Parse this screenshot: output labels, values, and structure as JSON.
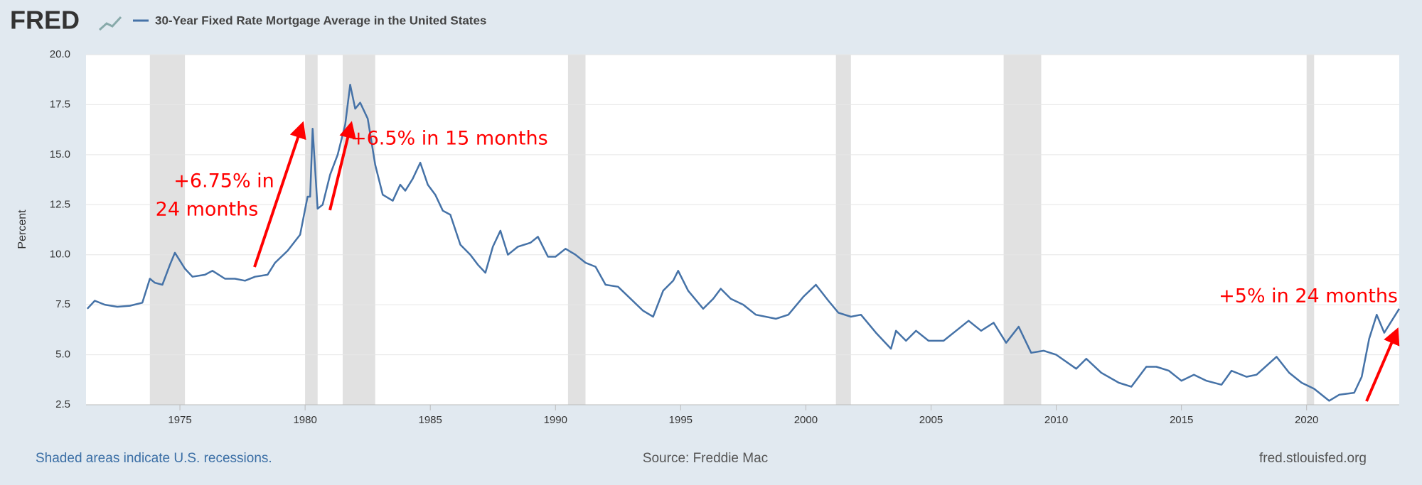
{
  "chart_data": {
    "type": "line",
    "logo": "FRED",
    "title": "30-Year Fixed Rate Mortgage Average in the United States",
    "y_label": "Percent",
    "footer_left": "Shaded areas indicate U.S. recessions.",
    "footer_center": "Source: Freddie Mac",
    "footer_right": "fred.stlouisfed.org",
    "annotations": [
      [
        "+6.75% in",
        "24 months"
      ],
      [
        "+6.5% in 15 months"
      ],
      [
        "+5% in 24 months"
      ]
    ],
    "xlim": [
      1971.25,
      2023.7
    ],
    "xticks": [
      1975,
      1980,
      1985,
      1990,
      1995,
      2000,
      2005,
      2010,
      2015,
      2020
    ],
    "ylim": [
      2.5,
      20
    ],
    "yticks": [
      {
        "value": 2.5,
        "label": "2.5"
      },
      {
        "value": 5,
        "label": "5.0"
      },
      {
        "value": 7.5,
        "label": "7.5"
      },
      {
        "value": 10,
        "label": "10.0"
      },
      {
        "value": 12.5,
        "label": "12.5"
      },
      {
        "value": 15,
        "label": "15.0"
      },
      {
        "value": 17.5,
        "label": "17.5"
      },
      {
        "value": 20,
        "label": "20.0"
      }
    ],
    "grid": true,
    "recessions": [
      [
        1973.8,
        1975.2
      ],
      [
        1980.0,
        1980.5
      ],
      [
        1981.5,
        1982.8
      ],
      [
        1990.5,
        1991.2
      ],
      [
        2001.2,
        2001.8
      ],
      [
        2007.9,
        2009.4
      ],
      [
        2020.0,
        2020.3
      ]
    ],
    "x": [
      1971.3,
      1971.6,
      1972.0,
      1972.5,
      1973.0,
      1973.5,
      1973.8,
      1974.0,
      1974.3,
      1974.6,
      1974.8,
      1975.2,
      1975.5,
      1976.0,
      1976.3,
      1976.8,
      1977.2,
      1977.6,
      1978.0,
      1978.5,
      1978.8,
      1979.3,
      1979.8,
      1980.1,
      1980.2,
      1980.3,
      1980.5,
      1980.7,
      1981.0,
      1981.3,
      1981.6,
      1981.8,
      1982.0,
      1982.2,
      1982.5,
      1982.8,
      1983.1,
      1983.5,
      1983.8,
      1984.0,
      1984.3,
      1984.6,
      1984.9,
      1985.2,
      1985.5,
      1985.8,
      1986.2,
      1986.6,
      1986.9,
      1987.2,
      1987.5,
      1987.8,
      1988.1,
      1988.5,
      1989.0,
      1989.3,
      1989.7,
      1990.0,
      1990.4,
      1990.8,
      1991.2,
      1991.6,
      1992.0,
      1992.5,
      1993.0,
      1993.5,
      1993.9,
      1994.3,
      1994.7,
      1994.9,
      1995.3,
      1995.9,
      1996.3,
      1996.6,
      1997.0,
      1997.5,
      1998.0,
      1998.8,
      1999.3,
      1999.9,
      2000.4,
      2000.9,
      2001.3,
      2001.8,
      2002.2,
      2002.8,
      2003.4,
      2003.6,
      2004.0,
      2004.4,
      2004.9,
      2005.5,
      2006.0,
      2006.5,
      2007.0,
      2007.5,
      2008.0,
      2008.5,
      2009.0,
      2009.5,
      2010.0,
      2010.8,
      2011.2,
      2011.8,
      2012.5,
      2013.0,
      2013.6,
      2014.0,
      2014.5,
      2015.0,
      2015.5,
      2016.0,
      2016.6,
      2017.0,
      2017.6,
      2018.0,
      2018.8,
      2019.3,
      2019.8,
      2020.3,
      2020.9,
      2021.3,
      2021.9,
      2022.2,
      2022.5,
      2022.8,
      2023.1,
      2023.4,
      2023.7
    ],
    "series": [
      {
        "name": "30-Year Fixed Rate Mortgage Average in the United States",
        "color": "#4572a7",
        "values": [
          7.3,
          7.7,
          7.5,
          7.4,
          7.45,
          7.6,
          8.8,
          8.6,
          8.5,
          9.5,
          10.1,
          9.3,
          8.9,
          9.0,
          9.2,
          8.8,
          8.8,
          8.7,
          8.9,
          9.0,
          9.6,
          10.2,
          11.0,
          12.9,
          12.9,
          16.3,
          12.3,
          12.5,
          14.0,
          15.0,
          16.5,
          18.5,
          17.3,
          17.6,
          16.8,
          14.5,
          13.0,
          12.7,
          13.5,
          13.2,
          13.8,
          14.6,
          13.5,
          13.0,
          12.2,
          12.0,
          10.5,
          10.0,
          9.5,
          9.1,
          10.4,
          11.2,
          10.0,
          10.4,
          10.6,
          10.9,
          9.9,
          9.9,
          10.3,
          10.0,
          9.6,
          9.4,
          8.5,
          8.4,
          7.8,
          7.2,
          6.9,
          8.2,
          8.7,
          9.2,
          8.2,
          7.3,
          7.8,
          8.3,
          7.8,
          7.5,
          7.0,
          6.8,
          7.0,
          7.9,
          8.5,
          7.7,
          7.1,
          6.9,
          7.0,
          6.1,
          5.3,
          6.2,
          5.7,
          6.2,
          5.7,
          5.7,
          6.2,
          6.7,
          6.2,
          6.6,
          5.6,
          6.4,
          5.1,
          5.2,
          5.0,
          4.3,
          4.8,
          4.1,
          3.6,
          3.4,
          4.4,
          4.4,
          4.2,
          3.7,
          4.0,
          3.7,
          3.5,
          4.2,
          3.9,
          4.0,
          4.9,
          4.1,
          3.6,
          3.3,
          2.7,
          3.0,
          3.1,
          3.9,
          5.8,
          7.0,
          6.1,
          6.7,
          7.3
        ]
      }
    ]
  }
}
